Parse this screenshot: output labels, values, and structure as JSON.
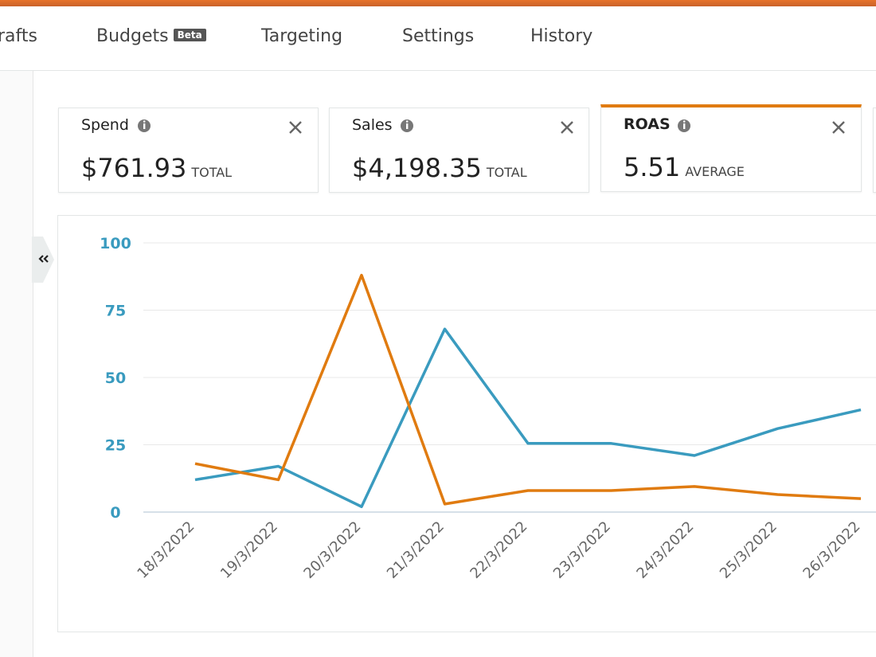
{
  "nav": {
    "tabs": [
      "Drafts",
      "Budgets",
      "Targeting",
      "Settings",
      "History"
    ],
    "badge": "Beta"
  },
  "metrics": [
    {
      "label": "Spend",
      "value": "$761.93",
      "unit": "TOTAL"
    },
    {
      "label": "Sales",
      "value": "$4,198.35",
      "unit": "TOTAL"
    },
    {
      "label": "ROAS",
      "value": "5.51",
      "unit": "AVERAGE"
    }
  ],
  "chart_data": {
    "type": "line",
    "categories": [
      "18/3/2022",
      "19/3/2022",
      "20/3/2022",
      "21/3/2022",
      "22/3/2022",
      "23/3/2022",
      "24/3/2022",
      "25/3/2022",
      "26/3/2022"
    ],
    "series": [
      {
        "color": "#3a9bbf",
        "values": [
          12,
          17,
          2,
          68,
          25.5,
          25.5,
          21,
          31,
          38
        ]
      },
      {
        "color": "#e07b10",
        "values": [
          18,
          12,
          88,
          3,
          8,
          8,
          9.5,
          6.5,
          5
        ]
      }
    ],
    "ylim": [
      0,
      100
    ],
    "yticks": [
      0,
      25,
      50,
      75,
      100
    ],
    "grid": true,
    "ytick_color": "#3a9bbf"
  }
}
